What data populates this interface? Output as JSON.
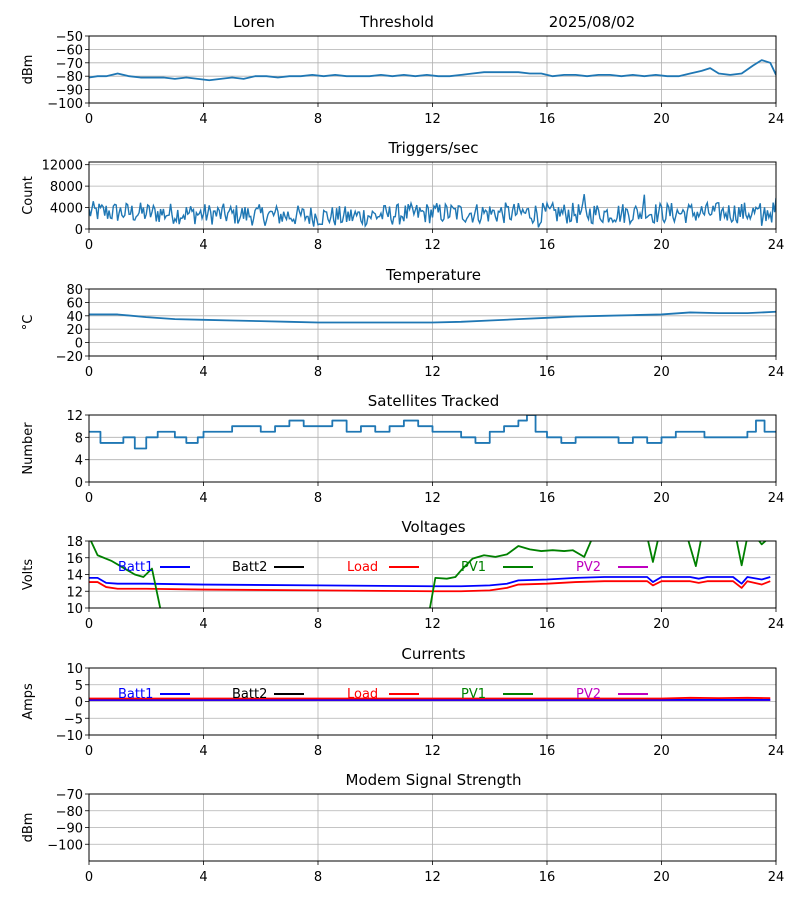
{
  "header": {
    "station": "Loren",
    "mode": "Threshold",
    "date": "2025/08/02"
  },
  "colors": {
    "series_default": "#1f77b4",
    "batt1": "#0000ff",
    "batt2": "#000000",
    "load": "#ff0000",
    "pv1": "#008000",
    "pv2": "#bf00bf"
  },
  "chart_data": [
    {
      "id": "signal",
      "type": "line",
      "title": "",
      "ylabel": "dBm",
      "xlim": [
        0,
        24
      ],
      "ylim": [
        -100,
        -50
      ],
      "xticks": [
        0,
        4,
        8,
        12,
        16,
        20,
        24
      ],
      "yticks": [
        -100,
        -90,
        -80,
        -70,
        -60,
        -50
      ],
      "grid": true,
      "series": [
        {
          "color": "series_default",
          "x": [
            0,
            0.3,
            0.6,
            1,
            1.4,
            1.8,
            2.2,
            2.6,
            3,
            3.4,
            3.8,
            4.2,
            4.6,
            5,
            5.4,
            5.8,
            6.2,
            6.6,
            7,
            7.4,
            7.8,
            8.2,
            8.6,
            9,
            9.4,
            9.8,
            10.2,
            10.6,
            11,
            11.4,
            11.8,
            12.2,
            12.6,
            13,
            13.4,
            13.8,
            14.2,
            14.6,
            15,
            15.4,
            15.8,
            16.2,
            16.6,
            17,
            17.4,
            17.8,
            18.2,
            18.6,
            19,
            19.4,
            19.8,
            20.2,
            20.6,
            21,
            21.4,
            21.7,
            22,
            22.4,
            22.8,
            23.2,
            23.5,
            23.8,
            24
          ],
          "y": [
            -81,
            -80,
            -80,
            -78,
            -80,
            -81,
            -81,
            -81,
            -82,
            -81,
            -82,
            -83,
            -82,
            -81,
            -82,
            -80,
            -80,
            -81,
            -80,
            -80,
            -79,
            -80,
            -79,
            -80,
            -80,
            -80,
            -79,
            -80,
            -79,
            -80,
            -79,
            -80,
            -80,
            -79,
            -78,
            -77,
            -77,
            -77,
            -77,
            -78,
            -78,
            -80,
            -79,
            -79,
            -80,
            -79,
            -79,
            -80,
            -79,
            -80,
            -79,
            -80,
            -80,
            -78,
            -76,
            -74,
            -78,
            -79,
            -78,
            -72,
            -68,
            -70,
            -79
          ]
        }
      ]
    },
    {
      "id": "triggers",
      "type": "line",
      "title": "Triggers/sec",
      "ylabel": "Count",
      "xlim": [
        0,
        24
      ],
      "ylim": [
        0,
        12500
      ],
      "xticks": [
        0,
        4,
        8,
        12,
        16,
        20,
        24
      ],
      "yticks": [
        0,
        4000,
        8000,
        12000
      ],
      "grid": true,
      "noise": {
        "step": 0.05,
        "baseline": [
          [
            0,
            3200
          ],
          [
            9,
            2300
          ],
          [
            12,
            3000
          ],
          [
            17,
            2900
          ],
          [
            24,
            3100
          ]
        ],
        "amplitude": 2000,
        "spikes": [
          [
            17.3,
            6500
          ],
          [
            19.4,
            6400
          ],
          [
            15.7,
            300
          ],
          [
            23.5,
            600
          ],
          [
            24,
            5800
          ]
        ]
      },
      "series": [
        {
          "color": "series_default"
        }
      ]
    },
    {
      "id": "temperature",
      "type": "line",
      "title": "Temperature",
      "ylabel": "°C",
      "xlim": [
        0,
        24
      ],
      "ylim": [
        -20,
        80
      ],
      "xticks": [
        0,
        4,
        8,
        12,
        16,
        20,
        24
      ],
      "yticks": [
        -20,
        0,
        20,
        40,
        60,
        80
      ],
      "grid": true,
      "series": [
        {
          "color": "series_default",
          "x": [
            0,
            1,
            2,
            3,
            4,
            5,
            6,
            7,
            8,
            9,
            10,
            11,
            12,
            13,
            14,
            15,
            16,
            17,
            18,
            19,
            20,
            21,
            22,
            23,
            24
          ],
          "y": [
            42,
            42,
            38,
            35,
            34,
            33,
            32,
            31,
            30,
            30,
            30,
            30,
            30,
            31,
            33,
            35,
            37,
            39,
            40,
            41,
            42,
            45,
            44,
            44,
            46
          ]
        }
      ]
    },
    {
      "id": "satellites",
      "type": "line",
      "title": "Satellites Tracked",
      "ylabel": "Number",
      "xlim": [
        0,
        24
      ],
      "ylim": [
        0,
        12
      ],
      "xticks": [
        0,
        4,
        8,
        12,
        16,
        20,
        24
      ],
      "yticks": [
        0,
        4,
        8,
        12
      ],
      "grid": true,
      "series": [
        {
          "color": "series_default",
          "step": true,
          "x": [
            0,
            0.4,
            1,
            1.2,
            1.6,
            2,
            2.4,
            3,
            3.4,
            3.8,
            4,
            4.5,
            5,
            5.5,
            6,
            6.5,
            7,
            7.5,
            8,
            8.5,
            9,
            9.5,
            10,
            10.5,
            11,
            11.5,
            12,
            12.5,
            13,
            13.5,
            14,
            14.5,
            15,
            15.3,
            15.6,
            16,
            16.5,
            17,
            17.5,
            18,
            18.5,
            19,
            19.5,
            20,
            20.5,
            21,
            21.5,
            22,
            22.5,
            23,
            23.3,
            23.6,
            24
          ],
          "y": [
            9,
            7,
            7,
            8,
            6,
            8,
            9,
            8,
            7,
            8,
            9,
            9,
            10,
            10,
            9,
            10,
            11,
            10,
            10,
            11,
            9,
            10,
            9,
            10,
            11,
            10,
            9,
            9,
            8,
            7,
            9,
            10,
            11,
            12,
            9,
            8,
            7,
            8,
            8,
            8,
            7,
            8,
            7,
            8,
            9,
            9,
            8,
            8,
            8,
            9,
            11,
            9,
            9
          ]
        }
      ]
    },
    {
      "id": "voltages",
      "type": "line",
      "title": "Voltages",
      "ylabel": "Volts",
      "xlim": [
        0,
        24
      ],
      "ylim": [
        10,
        18
      ],
      "xticks": [
        0,
        4,
        8,
        12,
        16,
        20,
        24
      ],
      "yticks": [
        10,
        12,
        14,
        16,
        18
      ],
      "grid": true,
      "legend": [
        "Batt1",
        "Batt2",
        "Load",
        "PV1",
        "PV2"
      ],
      "legend_placement": "top",
      "series": [
        {
          "name": "Batt1",
          "color": "batt1",
          "x": [
            0,
            0.3,
            0.6,
            1,
            2,
            4,
            8,
            12,
            13,
            14,
            14.6,
            15,
            16,
            17,
            18,
            19,
            19.5,
            19.7,
            20,
            21,
            21.3,
            21.6,
            22.5,
            22.8,
            23,
            23.5,
            23.8
          ],
          "y": [
            13.6,
            13.6,
            13,
            12.9,
            12.9,
            12.8,
            12.7,
            12.6,
            12.6,
            12.7,
            12.9,
            13.3,
            13.4,
            13.6,
            13.7,
            13.7,
            13.7,
            13.1,
            13.7,
            13.7,
            13.5,
            13.7,
            13.7,
            12.9,
            13.7,
            13.4,
            13.7
          ]
        },
        {
          "name": "Load",
          "color": "load",
          "x": [
            0,
            0.3,
            0.6,
            1,
            2,
            4,
            8,
            12,
            13,
            14,
            14.6,
            15,
            16,
            17,
            18,
            19,
            19.5,
            19.7,
            20,
            21,
            21.3,
            21.6,
            22.5,
            22.8,
            23,
            23.5,
            23.8
          ],
          "y": [
            13.1,
            13.1,
            12.5,
            12.3,
            12.3,
            12.2,
            12.1,
            12.0,
            12.0,
            12.1,
            12.4,
            12.8,
            12.9,
            13.1,
            13.2,
            13.2,
            13.2,
            12.7,
            13.2,
            13.2,
            13.0,
            13.2,
            13.2,
            12.4,
            13.2,
            12.8,
            13.2
          ]
        },
        {
          "name": "PV1",
          "color": "pv1",
          "x": [
            0,
            0.3,
            0.8,
            1.2,
            1.6,
            1.9,
            2.2,
            2.5,
            11.9,
            12.1,
            12.5,
            12.8,
            13,
            13.4,
            13.8,
            14.2,
            14.6,
            15,
            15.4,
            15.8,
            16.2,
            16.6,
            16.9,
            17.3,
            17.6,
            19.5,
            19.7,
            19.9,
            20.2,
            20.9,
            21.2,
            21.4,
            21.7,
            22.6,
            22.8,
            23,
            23.3,
            23.5,
            23.8
          ],
          "y": [
            18.5,
            16.3,
            15.6,
            14.8,
            14,
            13.7,
            14.7,
            9.8,
            9.8,
            13.6,
            13.5,
            13.7,
            14.5,
            15.9,
            16.3,
            16.1,
            16.4,
            17.4,
            17.0,
            16.8,
            16.9,
            16.8,
            16.9,
            16.1,
            18.5,
            18.5,
            15.5,
            18.5,
            18.5,
            18.5,
            15.0,
            18.5,
            18.5,
            18.5,
            15.1,
            18.5,
            18.5,
            17.6,
            18.5
          ]
        }
      ]
    },
    {
      "id": "currents",
      "type": "line",
      "title": "Currents",
      "ylabel": "Amps",
      "xlim": [
        0,
        24
      ],
      "ylim": [
        -10,
        10
      ],
      "xticks": [
        0,
        4,
        8,
        12,
        16,
        20,
        24
      ],
      "yticks": [
        -10,
        -5,
        0,
        5,
        10
      ],
      "grid": true,
      "legend": [
        "Batt1",
        "Batt2",
        "Load",
        "PV1",
        "PV2"
      ],
      "legend_placement": "top",
      "series": [
        {
          "name": "PV2",
          "color": "pv2",
          "x": [
            0,
            23.8
          ],
          "y": [
            0.4,
            0.4
          ]
        },
        {
          "name": "Batt1",
          "color": "batt1",
          "x": [
            0,
            23.8
          ],
          "y": [
            0.5,
            0.5
          ]
        },
        {
          "name": "Load",
          "color": "load",
          "x": [
            0,
            4,
            8,
            12,
            16,
            20,
            21,
            22,
            23,
            23.8
          ],
          "y": [
            0.9,
            0.9,
            0.9,
            0.9,
            0.9,
            0.9,
            1.1,
            1.0,
            1.1,
            1.0
          ]
        }
      ]
    },
    {
      "id": "modem",
      "type": "line",
      "title": "Modem Signal Strength",
      "ylabel": "dBm",
      "xlim": [
        0,
        24
      ],
      "ylim": [
        -110,
        -70
      ],
      "xticks": [
        0,
        4,
        8,
        12,
        16,
        20,
        24
      ],
      "yticks": [
        -100,
        -90,
        -80,
        -70
      ],
      "grid": true,
      "series": []
    }
  ]
}
